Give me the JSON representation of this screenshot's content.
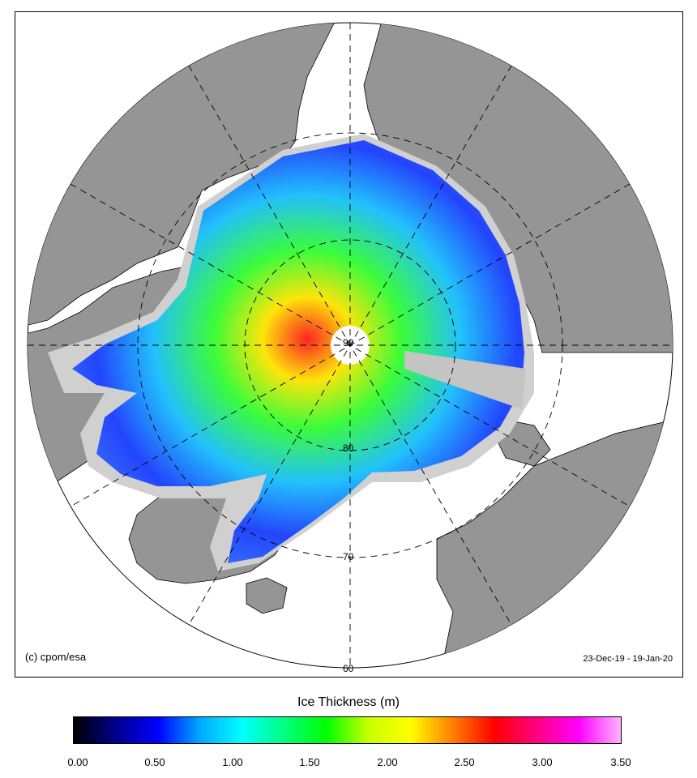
{
  "map": {
    "credit": "(c) cpom/esa",
    "date_range": "23-Dec-19 - 19-Jan-20",
    "latitude_labels": [
      "90",
      "80",
      "70",
      "60"
    ],
    "colors": {
      "land": "#959595",
      "ocean": "#ffffff",
      "no_data": "#c8c8c8",
      "coast": "#000000"
    }
  },
  "colorbar": {
    "title": "Ice Thickness (m)",
    "ticks": [
      "0.00",
      "0.50",
      "1.00",
      "1.50",
      "2.00",
      "2.50",
      "3.00",
      "3.50"
    ],
    "range": [
      0,
      3.5
    ],
    "stops": [
      "#000000",
      "#00008c",
      "#0000ff",
      "#00aaff",
      "#00ffff",
      "#00ff80",
      "#00ff00",
      "#c8ff00",
      "#ffff00",
      "#ff8000",
      "#ff0000",
      "#ff0080",
      "#ff00ff",
      "#ffb4ff"
    ]
  }
}
